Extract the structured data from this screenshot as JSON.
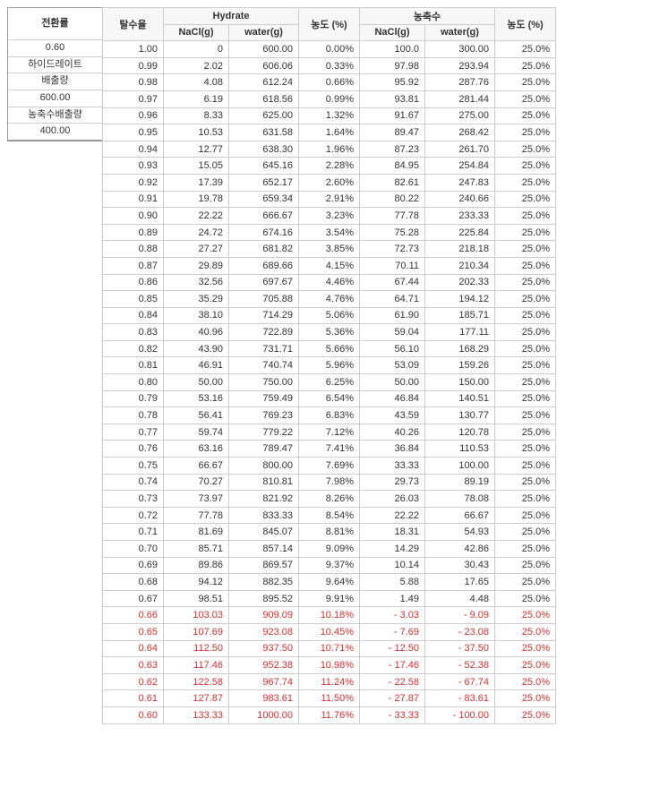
{
  "left_labels": {
    "header": "전환률",
    "firstrow": "0.60",
    "label1": "하이드레이트",
    "label2": "배출량",
    "val2": "600.00",
    "label3": "농축수배출량",
    "val3": "400.00"
  },
  "headers": {
    "colA": "탈수율",
    "group1": "Hydrate",
    "g1_nacl": "NaCl(g)",
    "g1_water": "water(g)",
    "pct1": "농도 (%)",
    "group2": "농축수",
    "g2_nacl": "NaCl(g)",
    "g2_water": "water(g)",
    "pct2": "농도 (%)"
  },
  "rows": [
    {
      "a": "1.00",
      "b": "0",
      "c": "600.00",
      "d": "0.00%",
      "e": "100.0",
      "f": "300.00",
      "g": "25.0%",
      "red": false
    },
    {
      "a": "0.99",
      "b": "2.02",
      "c": "606.06",
      "d": "0.33%",
      "e": "97.98",
      "f": "293.94",
      "g": "25.0%",
      "red": false
    },
    {
      "a": "0.98",
      "b": "4.08",
      "c": "612.24",
      "d": "0.66%",
      "e": "95.92",
      "f": "287.76",
      "g": "25.0%",
      "red": false
    },
    {
      "a": "0.97",
      "b": "6.19",
      "c": "618.56",
      "d": "0.99%",
      "e": "93.81",
      "f": "281.44",
      "g": "25.0%",
      "red": false
    },
    {
      "a": "0.96",
      "b": "8.33",
      "c": "625.00",
      "d": "1.32%",
      "e": "91.67",
      "f": "275.00",
      "g": "25.0%",
      "red": false
    },
    {
      "a": "0.95",
      "b": "10.53",
      "c": "631.58",
      "d": "1.64%",
      "e": "89.47",
      "f": "268.42",
      "g": "25.0%",
      "red": false
    },
    {
      "a": "0.94",
      "b": "12.77",
      "c": "638.30",
      "d": "1.96%",
      "e": "87.23",
      "f": "261.70",
      "g": "25.0%",
      "red": false
    },
    {
      "a": "0.93",
      "b": "15.05",
      "c": "645.16",
      "d": "2.28%",
      "e": "84.95",
      "f": "254.84",
      "g": "25.0%",
      "red": false
    },
    {
      "a": "0.92",
      "b": "17.39",
      "c": "652.17",
      "d": "2.60%",
      "e": "82.61",
      "f": "247.83",
      "g": "25.0%",
      "red": false
    },
    {
      "a": "0.91",
      "b": "19.78",
      "c": "659.34",
      "d": "2.91%",
      "e": "80.22",
      "f": "240.66",
      "g": "25.0%",
      "red": false
    },
    {
      "a": "0.90",
      "b": "22.22",
      "c": "666.67",
      "d": "3.23%",
      "e": "77.78",
      "f": "233.33",
      "g": "25.0%",
      "red": false
    },
    {
      "a": "0.89",
      "b": "24.72",
      "c": "674.16",
      "d": "3.54%",
      "e": "75.28",
      "f": "225.84",
      "g": "25.0%",
      "red": false
    },
    {
      "a": "0.88",
      "b": "27.27",
      "c": "681.82",
      "d": "3.85%",
      "e": "72.73",
      "f": "218.18",
      "g": "25.0%",
      "red": false
    },
    {
      "a": "0.87",
      "b": "29.89",
      "c": "689.66",
      "d": "4.15%",
      "e": "70.11",
      "f": "210.34",
      "g": "25.0%",
      "red": false
    },
    {
      "a": "0.86",
      "b": "32.56",
      "c": "697.67",
      "d": "4.46%",
      "e": "67.44",
      "f": "202.33",
      "g": "25.0%",
      "red": false
    },
    {
      "a": "0.85",
      "b": "35.29",
      "c": "705.88",
      "d": "4.76%",
      "e": "64.71",
      "f": "194.12",
      "g": "25.0%",
      "red": false
    },
    {
      "a": "0.84",
      "b": "38.10",
      "c": "714.29",
      "d": "5.06%",
      "e": "61.90",
      "f": "185.71",
      "g": "25.0%",
      "red": false
    },
    {
      "a": "0.83",
      "b": "40.96",
      "c": "722.89",
      "d": "5.36%",
      "e": "59.04",
      "f": "177.11",
      "g": "25.0%",
      "red": false
    },
    {
      "a": "0.82",
      "b": "43.90",
      "c": "731.71",
      "d": "5.66%",
      "e": "56.10",
      "f": "168.29",
      "g": "25.0%",
      "red": false
    },
    {
      "a": "0.81",
      "b": "46.91",
      "c": "740.74",
      "d": "5.96%",
      "e": "53.09",
      "f": "159.26",
      "g": "25.0%",
      "red": false
    },
    {
      "a": "0.80",
      "b": "50.00",
      "c": "750.00",
      "d": "6.25%",
      "e": "50.00",
      "f": "150.00",
      "g": "25.0%",
      "red": false
    },
    {
      "a": "0.79",
      "b": "53.16",
      "c": "759.49",
      "d": "6.54%",
      "e": "46.84",
      "f": "140.51",
      "g": "25.0%",
      "red": false
    },
    {
      "a": "0.78",
      "b": "56.41",
      "c": "769.23",
      "d": "6.83%",
      "e": "43.59",
      "f": "130.77",
      "g": "25.0%",
      "red": false
    },
    {
      "a": "0.77",
      "b": "59.74",
      "c": "779.22",
      "d": "7.12%",
      "e": "40.26",
      "f": "120.78",
      "g": "25.0%",
      "red": false
    },
    {
      "a": "0.76",
      "b": "63.16",
      "c": "789.47",
      "d": "7.41%",
      "e": "36.84",
      "f": "110.53",
      "g": "25.0%",
      "red": false
    },
    {
      "a": "0.75",
      "b": "66.67",
      "c": "800.00",
      "d": "7.69%",
      "e": "33.33",
      "f": "100.00",
      "g": "25.0%",
      "red": false
    },
    {
      "a": "0.74",
      "b": "70.27",
      "c": "810.81",
      "d": "7.98%",
      "e": "29.73",
      "f": "89.19",
      "g": "25.0%",
      "red": false
    },
    {
      "a": "0.73",
      "b": "73.97",
      "c": "821.92",
      "d": "8.26%",
      "e": "26.03",
      "f": "78.08",
      "g": "25.0%",
      "red": false
    },
    {
      "a": "0.72",
      "b": "77.78",
      "c": "833.33",
      "d": "8.54%",
      "e": "22.22",
      "f": "66.67",
      "g": "25.0%",
      "red": false
    },
    {
      "a": "0.71",
      "b": "81.69",
      "c": "845.07",
      "d": "8.81%",
      "e": "18.31",
      "f": "54.93",
      "g": "25.0%",
      "red": false
    },
    {
      "a": "0.70",
      "b": "85.71",
      "c": "857.14",
      "d": "9.09%",
      "e": "14.29",
      "f": "42.86",
      "g": "25.0%",
      "red": false
    },
    {
      "a": "0.69",
      "b": "89.86",
      "c": "869.57",
      "d": "9.37%",
      "e": "10.14",
      "f": "30.43",
      "g": "25.0%",
      "red": false
    },
    {
      "a": "0.68",
      "b": "94.12",
      "c": "882.35",
      "d": "9.64%",
      "e": "5.88",
      "f": "17.65",
      "g": "25.0%",
      "red": false
    },
    {
      "a": "0.67",
      "b": "98.51",
      "c": "895.52",
      "d": "9.91%",
      "e": "1.49",
      "f": "4.48",
      "g": "25.0%",
      "red": false
    },
    {
      "a": "0.66",
      "b": "103.03",
      "c": "909.09",
      "d": "10.18%",
      "e": "3.03",
      "f": "9.09",
      "g": "25.0%",
      "red": true
    },
    {
      "a": "0.65",
      "b": "107.69",
      "c": "923.08",
      "d": "10.45%",
      "e": "7.69",
      "f": "23.08",
      "g": "25.0%",
      "red": true
    },
    {
      "a": "0.64",
      "b": "112.50",
      "c": "937.50",
      "d": "10.71%",
      "e": "12.50",
      "f": "37.50",
      "g": "25.0%",
      "red": true
    },
    {
      "a": "0.63",
      "b": "117.46",
      "c": "952.38",
      "d": "10.98%",
      "e": "17.46",
      "f": "52.38",
      "g": "25.0%",
      "red": true
    },
    {
      "a": "0.62",
      "b": "122.58",
      "c": "967.74",
      "d": "11.24%",
      "e": "22.58",
      "f": "67.74",
      "g": "25.0%",
      "red": true
    },
    {
      "a": "0.61",
      "b": "127.87",
      "c": "983.61",
      "d": "11.50%",
      "e": "27.87",
      "f": "83.61",
      "g": "25.0%",
      "red": true
    },
    {
      "a": "0.60",
      "b": "133.33",
      "c": "1000.00",
      "d": "11.76%",
      "e": "33.33",
      "f": "100.00",
      "g": "25.0%",
      "red": true
    }
  ]
}
